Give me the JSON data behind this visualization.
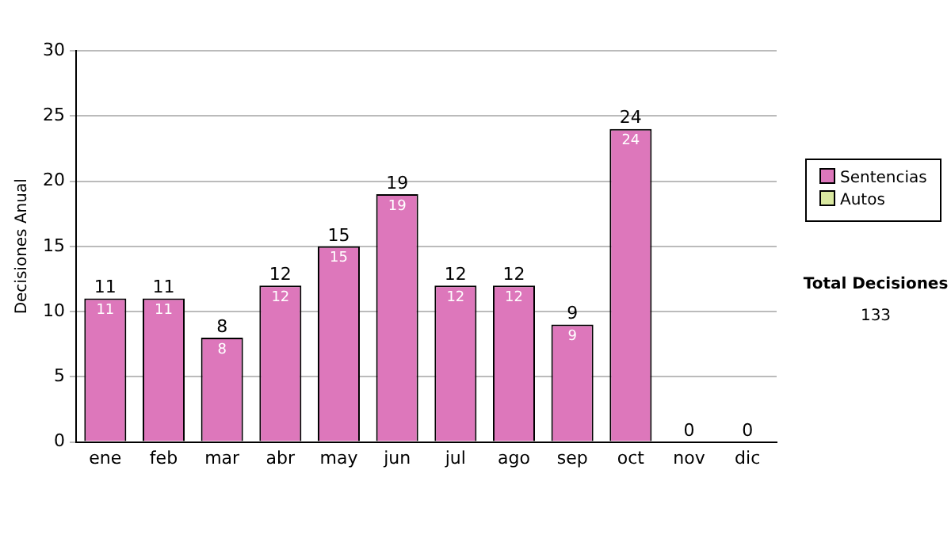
{
  "chart_data": {
    "type": "bar",
    "stacked": true,
    "ylabel": "Decisiones Anual",
    "categories": [
      "ene",
      "feb",
      "mar",
      "abr",
      "may",
      "jun",
      "jul",
      "ago",
      "sep",
      "oct",
      "nov",
      "dic"
    ],
    "series": [
      {
        "name": "Sentencias",
        "color": "#dd77bb",
        "values": [
          11,
          11,
          8,
          12,
          15,
          19,
          12,
          12,
          9,
          24,
          0,
          0
        ],
        "value_labels": [
          "11",
          "11",
          "8",
          "12",
          "15",
          "19",
          "12",
          "12",
          "9",
          "24",
          null,
          null
        ]
      },
      {
        "name": "Autos",
        "color": "#d9e8a0",
        "values": [
          0,
          0,
          0,
          0,
          0,
          0,
          0,
          0,
          0,
          0,
          0,
          0
        ]
      }
    ],
    "totals": [
      "11",
      "11",
      "8",
      "12",
      "15",
      "19",
      "12",
      "12",
      "9",
      "24",
      "0",
      "0"
    ],
    "ylim": [
      0,
      30
    ],
    "yticks": [
      0,
      5,
      10,
      15,
      20,
      25,
      30
    ],
    "grid": "y",
    "legend": "right",
    "annotations": [
      "Total Decisiones",
      "133"
    ]
  }
}
